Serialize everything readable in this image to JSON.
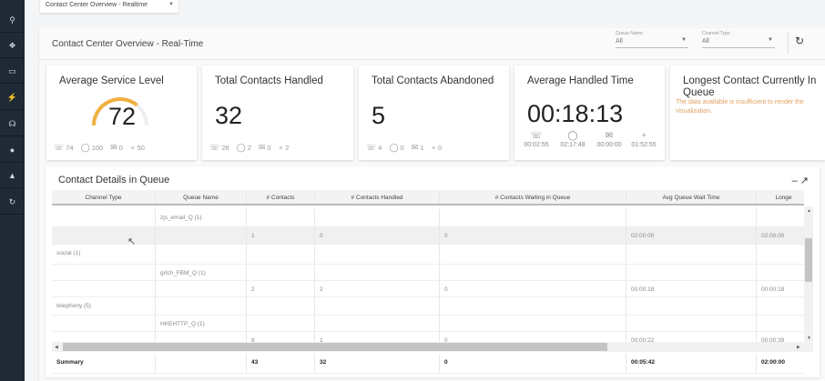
{
  "sidebar": {
    "icons": [
      "search-icon",
      "pin-icon",
      "monitor-icon",
      "plug-icon",
      "headset-icon",
      "microphone-icon",
      "speaker-icon",
      "history-icon"
    ]
  },
  "top_select": {
    "value": "Contact Center Overview - Realtime"
  },
  "panel": {
    "title": "Contact Center Overview - Real-Time",
    "filters": [
      {
        "label": "Queue Name",
        "value": "All"
      },
      {
        "label": "Channel Type",
        "value": "All"
      }
    ]
  },
  "cards": {
    "service_level": {
      "title": "Average Service Level",
      "value": "72",
      "gauge_percent": 72,
      "gauge_color": "#f0b040",
      "stats": [
        "74",
        "100",
        "0",
        "50"
      ]
    },
    "handled": {
      "title": "Total Contacts Handled",
      "value": "32",
      "stats": [
        "28",
        "2",
        "0",
        "2"
      ]
    },
    "abandoned": {
      "title": "Total Contacts Abandoned",
      "value": "5",
      "stats": [
        "4",
        "0",
        "1",
        "0"
      ]
    },
    "aht": {
      "title": "Average Handled Time",
      "value": "00:18:13",
      "stats": [
        "00:02:55",
        "02:17:48",
        "00:00:00",
        "01:52:55"
      ]
    },
    "longest": {
      "title": "Longest Contact Currently In Queue",
      "message": "The data available is insufficient to render the visualization."
    }
  },
  "table": {
    "title": "Contact Details in Queue",
    "columns": [
      "Channel Type",
      "Queue Name",
      "# Contacts",
      "# Contacts Handled",
      "# Contacts Waiting in Queue",
      "Avg Queue Wait Time",
      "Longe"
    ],
    "rows": [
      [
        "",
        "zjs_email_Q (1)",
        "",
        "",
        "",
        "",
        ""
      ],
      [
        "",
        "",
        "1",
        "0",
        "0",
        "02:00:00",
        "02:00:00"
      ],
      [
        "social (1)",
        "",
        "",
        "",
        "",
        "",
        ""
      ],
      [
        "",
        "grlch_FBM_Q (1)",
        "",
        "",
        "",
        "",
        ""
      ],
      [
        "",
        "",
        "2",
        "2",
        "0",
        "00:00:18",
        "00:00:18"
      ],
      [
        "telephony (5)",
        "",
        "",
        "",
        "",
        "",
        ""
      ],
      [
        "",
        "HKEHTTP_Q (1)",
        "",
        "",
        "",
        "",
        ""
      ],
      [
        "",
        "",
        "8",
        "1",
        "0",
        "00:00:22",
        "00:00:39"
      ]
    ],
    "summary": [
      "Summary",
      "",
      "43",
      "32",
      "0",
      "00:05:42",
      "02:00:00"
    ]
  }
}
